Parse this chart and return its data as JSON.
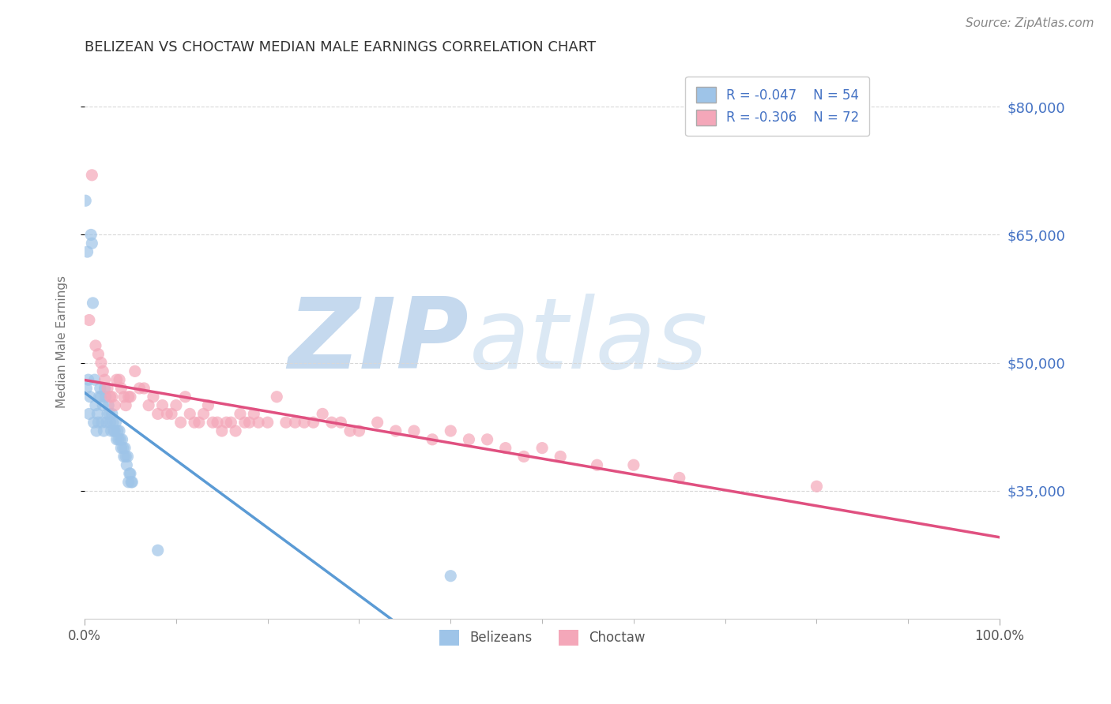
{
  "title": "BELIZEAN VS CHOCTAW MEDIAN MALE EARNINGS CORRELATION CHART",
  "source_text": "Source: ZipAtlas.com",
  "ylabel": "Median Male Earnings",
  "xlim": [
    0.0,
    1.0
  ],
  "ylim": [
    20000,
    85000
  ],
  "yticks": [
    35000,
    50000,
    65000,
    80000
  ],
  "ytick_labels": [
    "$35,000",
    "$50,000",
    "$65,000",
    "$80,000"
  ],
  "xticks": [
    0.0,
    1.0
  ],
  "xtick_labels": [
    "0.0%",
    "100.0%"
  ],
  "background_color": "#ffffff",
  "grid_color": "#d8d8d8",
  "title_color": "#333333",
  "title_fontsize": 13,
  "axis_label_color": "#777777",
  "right_tick_color": "#4472c4",
  "watermark_text": "ZIPatlas",
  "watermark_color": "#dce9f5",
  "legend_R1": "R = -0.047",
  "legend_N1": "N = 54",
  "legend_R2": "R = -0.306",
  "legend_N2": "N = 72",
  "legend_color": "#4472c4",
  "belizean_color": "#9ec4e8",
  "choctaw_color": "#f4a7b9",
  "trendline_belizean_color": "#5b9bd5",
  "trendline_choctaw_color": "#e05080",
  "belizean_label": "Belizeans",
  "choctaw_label": "Choctaw",
  "belizean_x": [
    0.001,
    0.002,
    0.003,
    0.004,
    0.005,
    0.006,
    0.007,
    0.008,
    0.009,
    0.01,
    0.011,
    0.012,
    0.013,
    0.014,
    0.015,
    0.016,
    0.017,
    0.018,
    0.019,
    0.02,
    0.021,
    0.022,
    0.023,
    0.024,
    0.025,
    0.026,
    0.027,
    0.028,
    0.029,
    0.03,
    0.031,
    0.032,
    0.033,
    0.034,
    0.035,
    0.036,
    0.037,
    0.038,
    0.039,
    0.04,
    0.041,
    0.042,
    0.043,
    0.044,
    0.045,
    0.046,
    0.047,
    0.048,
    0.049,
    0.05,
    0.051,
    0.052,
    0.08,
    0.4
  ],
  "belizean_y": [
    69000,
    47000,
    63000,
    48000,
    44000,
    46000,
    65000,
    64000,
    57000,
    43000,
    48000,
    45000,
    42000,
    44000,
    43000,
    46000,
    47000,
    46000,
    43000,
    45000,
    42000,
    47000,
    46000,
    43000,
    44000,
    45000,
    44000,
    43000,
    42000,
    44000,
    43000,
    42000,
    42000,
    43000,
    41000,
    42000,
    41000,
    42000,
    41000,
    40000,
    41000,
    40000,
    39000,
    40000,
    39000,
    38000,
    39000,
    36000,
    37000,
    37000,
    36000,
    36000,
    28000,
    25000
  ],
  "choctaw_x": [
    0.005,
    0.008,
    0.012,
    0.015,
    0.018,
    0.02,
    0.022,
    0.025,
    0.028,
    0.03,
    0.033,
    0.035,
    0.038,
    0.04,
    0.043,
    0.045,
    0.048,
    0.05,
    0.055,
    0.06,
    0.065,
    0.07,
    0.075,
    0.08,
    0.085,
    0.09,
    0.095,
    0.1,
    0.105,
    0.11,
    0.115,
    0.12,
    0.125,
    0.13,
    0.135,
    0.14,
    0.145,
    0.15,
    0.155,
    0.16,
    0.165,
    0.17,
    0.175,
    0.18,
    0.185,
    0.19,
    0.2,
    0.21,
    0.22,
    0.23,
    0.24,
    0.25,
    0.26,
    0.27,
    0.28,
    0.29,
    0.3,
    0.32,
    0.34,
    0.36,
    0.38,
    0.4,
    0.42,
    0.44,
    0.46,
    0.48,
    0.5,
    0.52,
    0.56,
    0.6,
    0.65,
    0.8
  ],
  "choctaw_y": [
    55000,
    72000,
    52000,
    51000,
    50000,
    49000,
    48000,
    47000,
    46000,
    46000,
    45000,
    48000,
    48000,
    47000,
    46000,
    45000,
    46000,
    46000,
    49000,
    47000,
    47000,
    45000,
    46000,
    44000,
    45000,
    44000,
    44000,
    45000,
    43000,
    46000,
    44000,
    43000,
    43000,
    44000,
    45000,
    43000,
    43000,
    42000,
    43000,
    43000,
    42000,
    44000,
    43000,
    43000,
    44000,
    43000,
    43000,
    46000,
    43000,
    43000,
    43000,
    43000,
    44000,
    43000,
    43000,
    42000,
    42000,
    43000,
    42000,
    42000,
    41000,
    42000,
    41000,
    41000,
    40000,
    39000,
    40000,
    39000,
    38000,
    38000,
    36500,
    35500
  ]
}
